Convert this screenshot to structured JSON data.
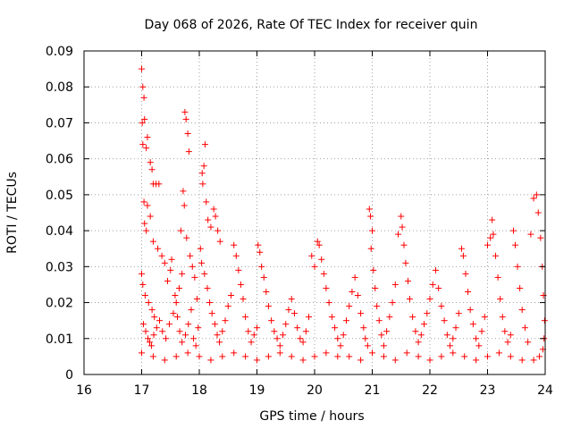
{
  "chart_data": {
    "type": "scatter",
    "title": "Day 068 of 2026, Rate Of TEC Index for receiver quin",
    "xlabel": "GPS time / hours",
    "ylabel": "ROTI / TECUs",
    "xlim": [
      16,
      24
    ],
    "ylim": [
      0,
      0.09
    ],
    "x_ticks": [
      16,
      17,
      18,
      19,
      20,
      21,
      22,
      23,
      24
    ],
    "x_tick_labels": [
      "16",
      "17",
      "18",
      "19",
      "20",
      "21",
      "22",
      "23",
      "24"
    ],
    "y_ticks": [
      0,
      0.01,
      0.02,
      0.03,
      0.04,
      0.05,
      0.06,
      0.07,
      0.08,
      0.09
    ],
    "y_tick_labels": [
      "0",
      "0.01",
      "0.02",
      "0.03",
      "0.04",
      "0.05",
      "0.06",
      "0.07",
      "0.08",
      "0.09"
    ],
    "grid": true,
    "marker": "+",
    "marker_color": "#ff0000",
    "series": [
      {
        "name": "ROTI",
        "points": [
          [
            17.0,
            0.085
          ],
          [
            17.02,
            0.08
          ],
          [
            17.04,
            0.077
          ],
          [
            17.01,
            0.07
          ],
          [
            17.05,
            0.071
          ],
          [
            17.1,
            0.066
          ],
          [
            17.08,
            0.063
          ],
          [
            17.02,
            0.064
          ],
          [
            17.15,
            0.059
          ],
          [
            17.18,
            0.057
          ],
          [
            17.2,
            0.053
          ],
          [
            17.25,
            0.053
          ],
          [
            17.3,
            0.053
          ],
          [
            17.04,
            0.048
          ],
          [
            17.1,
            0.047
          ],
          [
            17.15,
            0.044
          ],
          [
            17.05,
            0.042
          ],
          [
            17.08,
            0.04
          ],
          [
            17.2,
            0.037
          ],
          [
            17.28,
            0.035
          ],
          [
            17.35,
            0.033
          ],
          [
            17.4,
            0.031
          ],
          [
            17.0,
            0.028
          ],
          [
            17.02,
            0.025
          ],
          [
            17.06,
            0.022
          ],
          [
            17.12,
            0.02
          ],
          [
            17.18,
            0.018
          ],
          [
            17.22,
            0.016
          ],
          [
            17.03,
            0.014
          ],
          [
            17.07,
            0.012
          ],
          [
            17.11,
            0.01
          ],
          [
            17.14,
            0.009
          ],
          [
            17.17,
            0.008
          ],
          [
            17.21,
            0.011
          ],
          [
            17.26,
            0.013
          ],
          [
            17.31,
            0.015
          ],
          [
            17.36,
            0.012
          ],
          [
            17.42,
            0.01
          ],
          [
            17.48,
            0.014
          ],
          [
            17.55,
            0.017
          ],
          [
            17.6,
            0.02
          ],
          [
            17.65,
            0.024
          ],
          [
            17.7,
            0.028
          ],
          [
            17.75,
            0.073
          ],
          [
            17.77,
            0.071
          ],
          [
            17.8,
            0.067
          ],
          [
            17.82,
            0.062
          ],
          [
            17.72,
            0.051
          ],
          [
            17.74,
            0.047
          ],
          [
            17.68,
            0.04
          ],
          [
            17.78,
            0.038
          ],
          [
            17.84,
            0.033
          ],
          [
            17.88,
            0.03
          ],
          [
            17.92,
            0.027
          ],
          [
            17.96,
            0.021
          ],
          [
            17.5,
            0.029
          ],
          [
            17.45,
            0.026
          ],
          [
            17.52,
            0.032
          ],
          [
            17.58,
            0.022
          ],
          [
            17.62,
            0.016
          ],
          [
            17.66,
            0.012
          ],
          [
            17.7,
            0.009
          ],
          [
            17.76,
            0.011
          ],
          [
            17.81,
            0.014
          ],
          [
            17.86,
            0.018
          ],
          [
            17.9,
            0.01
          ],
          [
            17.94,
            0.008
          ],
          [
            17.98,
            0.013
          ],
          [
            18.05,
            0.056
          ],
          [
            18.08,
            0.058
          ],
          [
            18.1,
            0.064
          ],
          [
            18.06,
            0.053
          ],
          [
            18.12,
            0.048
          ],
          [
            18.15,
            0.043
          ],
          [
            18.2,
            0.041
          ],
          [
            18.25,
            0.046
          ],
          [
            18.28,
            0.044
          ],
          [
            18.32,
            0.04
          ],
          [
            18.36,
            0.037
          ],
          [
            18.02,
            0.035
          ],
          [
            18.04,
            0.031
          ],
          [
            18.09,
            0.028
          ],
          [
            18.14,
            0.024
          ],
          [
            18.18,
            0.02
          ],
          [
            18.22,
            0.017
          ],
          [
            18.27,
            0.014
          ],
          [
            18.31,
            0.011
          ],
          [
            18.35,
            0.009
          ],
          [
            18.4,
            0.012
          ],
          [
            18.45,
            0.015
          ],
          [
            18.5,
            0.019
          ],
          [
            18.55,
            0.022
          ],
          [
            18.6,
            0.036
          ],
          [
            18.64,
            0.033
          ],
          [
            18.68,
            0.029
          ],
          [
            18.72,
            0.025
          ],
          [
            18.76,
            0.021
          ],
          [
            18.8,
            0.016
          ],
          [
            18.85,
            0.012
          ],
          [
            18.9,
            0.009
          ],
          [
            18.95,
            0.011
          ],
          [
            19.0,
            0.013
          ],
          [
            19.02,
            0.036
          ],
          [
            19.05,
            0.034
          ],
          [
            19.08,
            0.03
          ],
          [
            19.12,
            0.027
          ],
          [
            19.16,
            0.023
          ],
          [
            19.2,
            0.019
          ],
          [
            19.25,
            0.015
          ],
          [
            19.3,
            0.012
          ],
          [
            19.35,
            0.01
          ],
          [
            19.4,
            0.008
          ],
          [
            19.45,
            0.011
          ],
          [
            19.5,
            0.014
          ],
          [
            19.55,
            0.018
          ],
          [
            19.6,
            0.021
          ],
          [
            19.65,
            0.017
          ],
          [
            19.7,
            0.013
          ],
          [
            19.75,
            0.01
          ],
          [
            19.8,
            0.009
          ],
          [
            19.85,
            0.012
          ],
          [
            19.9,
            0.016
          ],
          [
            19.95,
            0.033
          ],
          [
            20.0,
            0.03
          ],
          [
            20.05,
            0.037
          ],
          [
            20.08,
            0.036
          ],
          [
            20.12,
            0.032
          ],
          [
            20.16,
            0.028
          ],
          [
            20.2,
            0.024
          ],
          [
            20.25,
            0.02
          ],
          [
            20.3,
            0.016
          ],
          [
            20.35,
            0.013
          ],
          [
            20.4,
            0.01
          ],
          [
            20.45,
            0.008
          ],
          [
            20.5,
            0.011
          ],
          [
            20.55,
            0.015
          ],
          [
            20.6,
            0.019
          ],
          [
            20.65,
            0.023
          ],
          [
            20.7,
            0.027
          ],
          [
            20.75,
            0.022
          ],
          [
            20.8,
            0.017
          ],
          [
            20.85,
            0.013
          ],
          [
            20.88,
            0.01
          ],
          [
            20.92,
            0.008
          ],
          [
            20.95,
            0.046
          ],
          [
            20.97,
            0.044
          ],
          [
            21.0,
            0.04
          ],
          [
            20.98,
            0.035
          ],
          [
            21.02,
            0.029
          ],
          [
            21.05,
            0.024
          ],
          [
            21.08,
            0.019
          ],
          [
            21.12,
            0.015
          ],
          [
            21.16,
            0.011
          ],
          [
            21.2,
            0.008
          ],
          [
            21.25,
            0.012
          ],
          [
            21.3,
            0.016
          ],
          [
            21.35,
            0.02
          ],
          [
            21.4,
            0.025
          ],
          [
            21.45,
            0.039
          ],
          [
            21.5,
            0.044
          ],
          [
            21.52,
            0.041
          ],
          [
            21.55,
            0.036
          ],
          [
            21.58,
            0.031
          ],
          [
            21.62,
            0.026
          ],
          [
            21.65,
            0.021
          ],
          [
            21.7,
            0.016
          ],
          [
            21.75,
            0.012
          ],
          [
            21.8,
            0.009
          ],
          [
            21.85,
            0.011
          ],
          [
            21.9,
            0.014
          ],
          [
            21.95,
            0.017
          ],
          [
            22.0,
            0.021
          ],
          [
            22.05,
            0.025
          ],
          [
            22.1,
            0.029
          ],
          [
            22.15,
            0.024
          ],
          [
            22.2,
            0.019
          ],
          [
            22.25,
            0.015
          ],
          [
            22.3,
            0.011
          ],
          [
            22.35,
            0.008
          ],
          [
            22.4,
            0.01
          ],
          [
            22.45,
            0.013
          ],
          [
            22.5,
            0.017
          ],
          [
            22.55,
            0.035
          ],
          [
            22.58,
            0.033
          ],
          [
            22.62,
            0.028
          ],
          [
            22.66,
            0.023
          ],
          [
            22.7,
            0.018
          ],
          [
            22.75,
            0.014
          ],
          [
            22.8,
            0.01
          ],
          [
            22.85,
            0.008
          ],
          [
            22.9,
            0.012
          ],
          [
            22.95,
            0.016
          ],
          [
            23.0,
            0.036
          ],
          [
            23.05,
            0.038
          ],
          [
            23.08,
            0.043
          ],
          [
            23.1,
            0.039
          ],
          [
            23.14,
            0.033
          ],
          [
            23.18,
            0.027
          ],
          [
            23.22,
            0.021
          ],
          [
            23.26,
            0.016
          ],
          [
            23.3,
            0.012
          ],
          [
            23.35,
            0.009
          ],
          [
            23.4,
            0.011
          ],
          [
            23.45,
            0.04
          ],
          [
            23.48,
            0.036
          ],
          [
            23.52,
            0.03
          ],
          [
            23.56,
            0.024
          ],
          [
            23.6,
            0.018
          ],
          [
            23.65,
            0.013
          ],
          [
            23.7,
            0.009
          ],
          [
            23.75,
            0.039
          ],
          [
            23.8,
            0.049
          ],
          [
            23.85,
            0.05
          ],
          [
            23.88,
            0.045
          ],
          [
            23.92,
            0.038
          ],
          [
            23.95,
            0.03
          ],
          [
            23.97,
            0.022
          ],
          [
            23.99,
            0.015
          ],
          [
            23.98,
            0.01
          ],
          [
            23.96,
            0.007
          ],
          [
            23.9,
            0.005
          ],
          [
            23.8,
            0.004
          ],
          [
            23.6,
            0.004
          ],
          [
            23.4,
            0.005
          ],
          [
            23.2,
            0.006
          ],
          [
            23.0,
            0.005
          ],
          [
            22.8,
            0.004
          ],
          [
            22.6,
            0.005
          ],
          [
            22.4,
            0.006
          ],
          [
            22.2,
            0.005
          ],
          [
            22.0,
            0.004
          ],
          [
            21.8,
            0.005
          ],
          [
            21.6,
            0.006
          ],
          [
            21.4,
            0.004
          ],
          [
            21.2,
            0.005
          ],
          [
            21.0,
            0.006
          ],
          [
            20.8,
            0.004
          ],
          [
            20.6,
            0.005
          ],
          [
            20.4,
            0.005
          ],
          [
            20.2,
            0.006
          ],
          [
            20.0,
            0.005
          ],
          [
            19.8,
            0.004
          ],
          [
            19.6,
            0.005
          ],
          [
            19.4,
            0.006
          ],
          [
            19.2,
            0.005
          ],
          [
            19.0,
            0.004
          ],
          [
            18.8,
            0.005
          ],
          [
            18.6,
            0.006
          ],
          [
            18.4,
            0.005
          ],
          [
            18.2,
            0.004
          ],
          [
            18.0,
            0.005
          ],
          [
            17.8,
            0.006
          ],
          [
            17.6,
            0.005
          ],
          [
            17.4,
            0.004
          ],
          [
            17.2,
            0.005
          ],
          [
            17.0,
            0.006
          ]
        ]
      }
    ]
  }
}
